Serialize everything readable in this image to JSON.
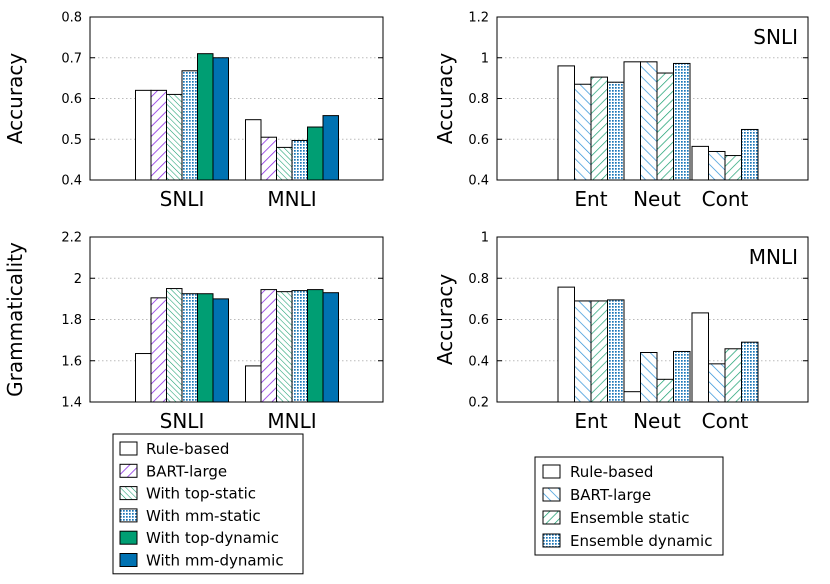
{
  "chart_data": [
    {
      "id": "top-left",
      "type": "bar",
      "title": "",
      "ylabel": "Accuracy",
      "ylim": [
        0.4,
        0.8
      ],
      "yticks": [
        "0.4",
        "0.5",
        "0.6",
        "0.7",
        "0.8"
      ],
      "grid": true,
      "categories": [
        "SNLI",
        "MNLI"
      ],
      "series": [
        {
          "name": "Rule-based",
          "values": [
            0.62,
            0.548
          ]
        },
        {
          "name": "BART-large",
          "values": [
            0.62,
            0.505
          ]
        },
        {
          "name": "With top-static",
          "values": [
            0.61,
            0.48
          ]
        },
        {
          "name": "With mm-static",
          "values": [
            0.668,
            0.497
          ]
        },
        {
          "name": "With top-dynamic",
          "values": [
            0.71,
            0.53
          ]
        },
        {
          "name": "With mm-dynamic",
          "values": [
            0.7,
            0.558
          ]
        }
      ]
    },
    {
      "id": "top-right",
      "type": "bar",
      "title": "SNLI",
      "ylabel": "Accuracy",
      "ylim": [
        0.4,
        1.2
      ],
      "yticks": [
        "0.4",
        "0.6",
        "0.8",
        "1",
        "1.2"
      ],
      "grid": true,
      "categories": [
        "Ent",
        "Neut",
        "Cont"
      ],
      "series": [
        {
          "name": "Rule-based",
          "values": [
            0.96,
            0.98,
            0.565
          ]
        },
        {
          "name": "BART-large",
          "values": [
            0.87,
            0.98,
            0.54
          ]
        },
        {
          "name": "Ensemble static",
          "values": [
            0.905,
            0.925,
            0.52
          ]
        },
        {
          "name": "Ensemble dynamic",
          "values": [
            0.88,
            0.972,
            0.648
          ]
        }
      ]
    },
    {
      "id": "bottom-left",
      "type": "bar",
      "title": "",
      "ylabel": "Grammaticality",
      "ylim": [
        1.4,
        2.2
      ],
      "yticks": [
        "1.4",
        "1.6",
        "1.8",
        "2",
        "2.2"
      ],
      "grid": true,
      "categories": [
        "SNLI",
        "MNLI"
      ],
      "series": [
        {
          "name": "Rule-based",
          "values": [
            1.635,
            1.575
          ]
        },
        {
          "name": "BART-large",
          "values": [
            1.905,
            1.945
          ]
        },
        {
          "name": "With top-static",
          "values": [
            1.95,
            1.935
          ]
        },
        {
          "name": "With mm-static",
          "values": [
            1.925,
            1.94
          ]
        },
        {
          "name": "With top-dynamic",
          "values": [
            1.925,
            1.945
          ]
        },
        {
          "name": "With mm-dynamic",
          "values": [
            1.9,
            1.93
          ]
        }
      ]
    },
    {
      "id": "bottom-right",
      "type": "bar",
      "title": "MNLI",
      "ylabel": "Accuracy",
      "ylim": [
        0.2,
        1.0
      ],
      "yticks": [
        "0.2",
        "0.4",
        "0.6",
        "0.8",
        "1"
      ],
      "grid": true,
      "categories": [
        "Ent",
        "Neut",
        "Cont"
      ],
      "series": [
        {
          "name": "Rule-based",
          "values": [
            0.757,
            0.25,
            0.632
          ]
        },
        {
          "name": "BART-large",
          "values": [
            0.69,
            0.44,
            0.385
          ]
        },
        {
          "name": "Ensemble static",
          "values": [
            0.69,
            0.31,
            0.458
          ]
        },
        {
          "name": "Ensemble dynamic",
          "values": [
            0.695,
            0.445,
            0.49
          ]
        }
      ]
    }
  ],
  "legends": {
    "left": [
      "Rule-based",
      "BART-large",
      "With top-static",
      "With mm-static",
      "With top-dynamic",
      "With mm-dynamic"
    ],
    "right": [
      "Rule-based",
      "BART-large",
      "Ensemble static",
      "Ensemble dynamic"
    ]
  },
  "colors": {
    "axis": "#000000",
    "grid": "#bbbbbb",
    "purple": "#8a2be2",
    "teal_light": "#1a9f70",
    "blue_hatch": "#2a8fd6",
    "dots": "#1a76b8",
    "green": "#009e73",
    "blue": "#0072b2"
  }
}
